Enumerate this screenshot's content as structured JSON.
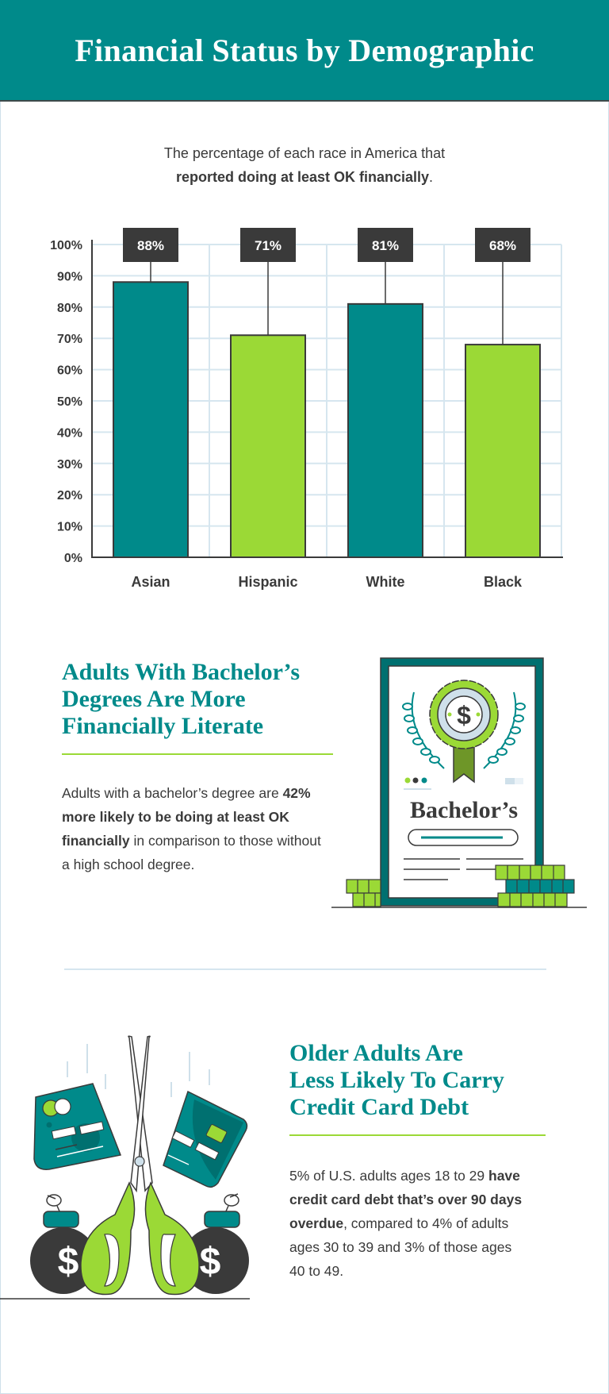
{
  "header": {
    "title": "Financial Status by Demographic"
  },
  "intro": {
    "line1": "The percentage of each race in America that",
    "line2_bold": "reported doing at least OK financially",
    "line2_end": "."
  },
  "chart_data": {
    "type": "bar",
    "title": "",
    "xlabel": "",
    "ylabel": "",
    "categories": [
      "Asian",
      "Hispanic",
      "White",
      "Black"
    ],
    "values": [
      88,
      71,
      81,
      68
    ],
    "data_labels": [
      "88%",
      "71%",
      "81%",
      "68%"
    ],
    "ylim": [
      0,
      100
    ],
    "yticks": [
      "0%",
      "10%",
      "20%",
      "30%",
      "40%",
      "50%",
      "60%",
      "70%",
      "80%",
      "90%",
      "100%"
    ],
    "grid": true,
    "colors": [
      "#008a8a",
      "#9bd936",
      "#008a8a",
      "#9bd936"
    ],
    "label_box_color": "#3a3a3a"
  },
  "section_bachelor": {
    "title_lines": [
      "Adults With Bachelor’s",
      "Degrees Are More",
      "Financially Literate"
    ],
    "para": {
      "s1": "Adults with a bachelor’s degree are ",
      "s2_bold": "42% more likely to be doing at least OK financially",
      "s3": " in comparison to those without a high school degree."
    },
    "illustration": {
      "icon": "diploma-certificate-icon",
      "certificate_text": "Bachelor’s"
    }
  },
  "section_credit": {
    "title_lines": [
      "Older Adults Are",
      "Less Likely To Carry",
      "Credit Card Debt"
    ],
    "para": {
      "s1": "5% of U.S. adults ages 18 to 29 ",
      "s2_bold": "have credit card debt that’s over 90 days overdue",
      "s3": ", compared to 4% of adults ages 30 to 39 and 3% of those ages 40 to 49."
    },
    "illustration": {
      "icon": "scissors-cutting-credit-cards-icon"
    }
  },
  "colors": {
    "teal": "#008a8a",
    "green": "#9bd936",
    "dark": "#3a3a3a",
    "grid": "#d6e6ef"
  }
}
